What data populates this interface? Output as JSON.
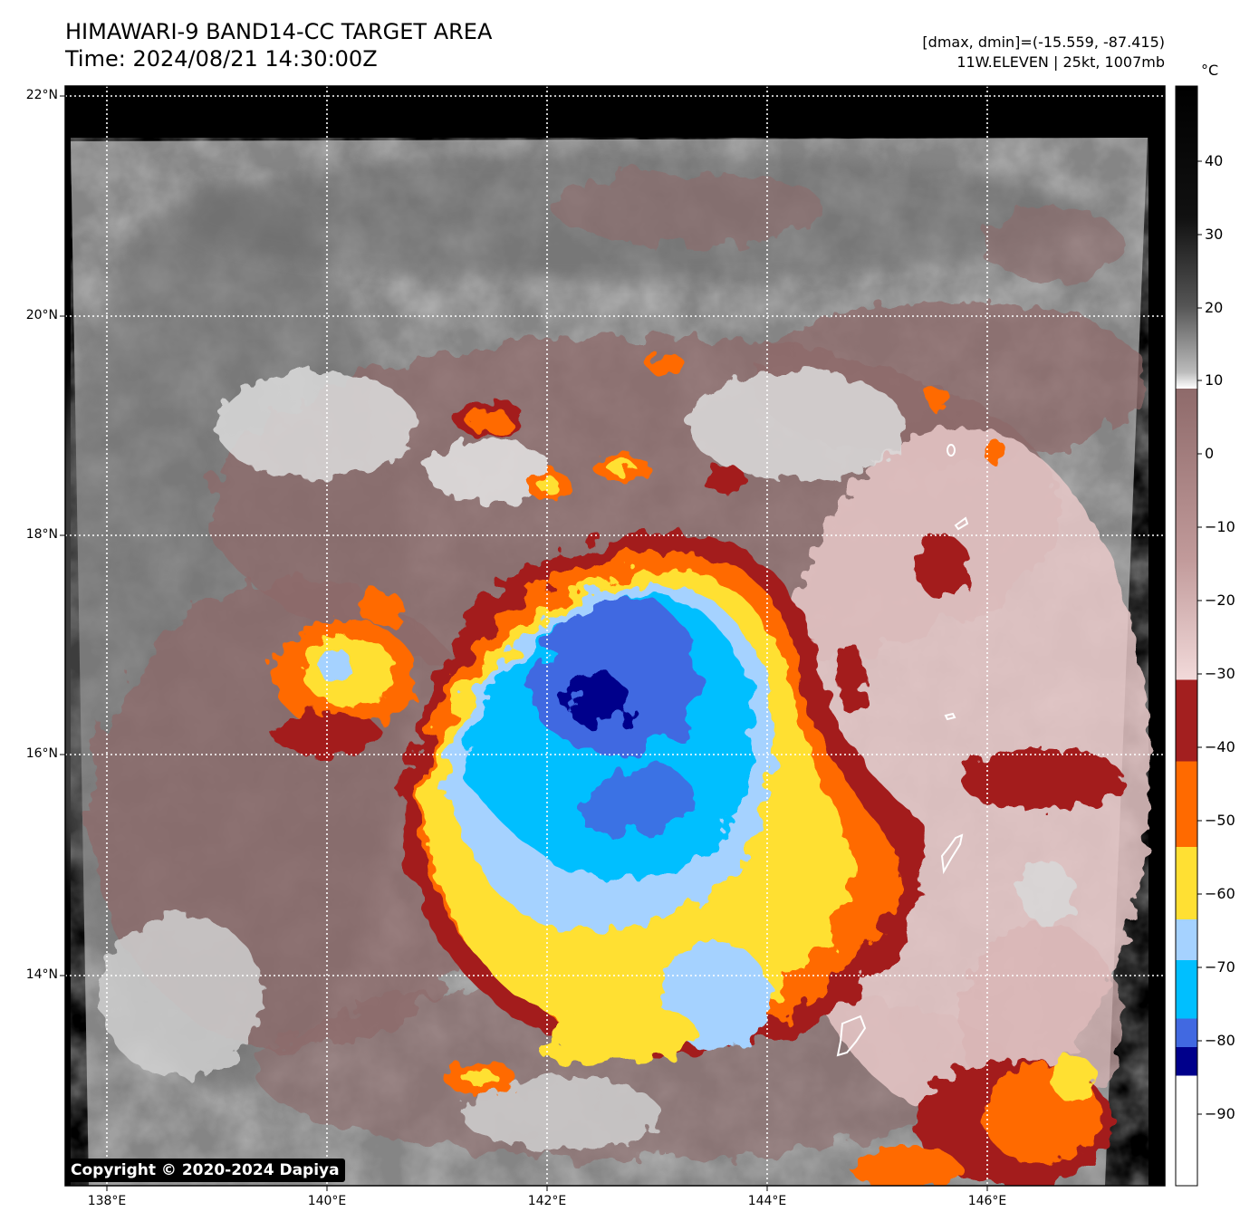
{
  "header": {
    "title_line1": "HIMAWARI-9 BAND14-CC TARGET AREA",
    "title_line2": "Time: 2024/08/21 14:30:00Z",
    "range_text": "[dmax, dmin]=(-15.559, -87.415)",
    "storm_text": "11W.ELEVEN | 25kt, 1007mb"
  },
  "axes": {
    "lat_labels": [
      "22°N",
      "20°N",
      "18°N",
      "16°N",
      "14°N"
    ],
    "lon_labels": [
      "138°E",
      "140°E",
      "142°E",
      "144°E",
      "146°E"
    ]
  },
  "colorbar": {
    "unit": "°C",
    "tick_labels": [
      "40",
      "30",
      "20",
      "10",
      "0",
      "−10",
      "−20",
      "−30",
      "−40",
      "−50",
      "−60",
      "−70",
      "−80",
      "−90"
    ],
    "color_bands": [
      {
        "from": -100,
        "to": -84,
        "color": "#ffffff"
      },
      {
        "from": -84,
        "to": -80,
        "color": "#00008b"
      },
      {
        "from": -80,
        "to": -70,
        "color": "#4169e1"
      },
      {
        "from": -70,
        "to": -65,
        "color": "#00bfff"
      },
      {
        "from": -65,
        "to": -58,
        "color": "#a5d2ff"
      },
      {
        "from": -58,
        "to": -48,
        "color": "#ffe033"
      },
      {
        "from": -48,
        "to": -41,
        "color": "#ff6a00"
      },
      {
        "from": -41,
        "to": -30,
        "color": "#a31f1f"
      }
    ]
  },
  "copyright": "Copyright © 2020-2024 Dapiya",
  "colors": {
    "background": "#000000",
    "cloud_gray": "#8a8a8a",
    "cloud_brown": "#8e6a6a",
    "cloud_pink": "#e7c8c8"
  }
}
